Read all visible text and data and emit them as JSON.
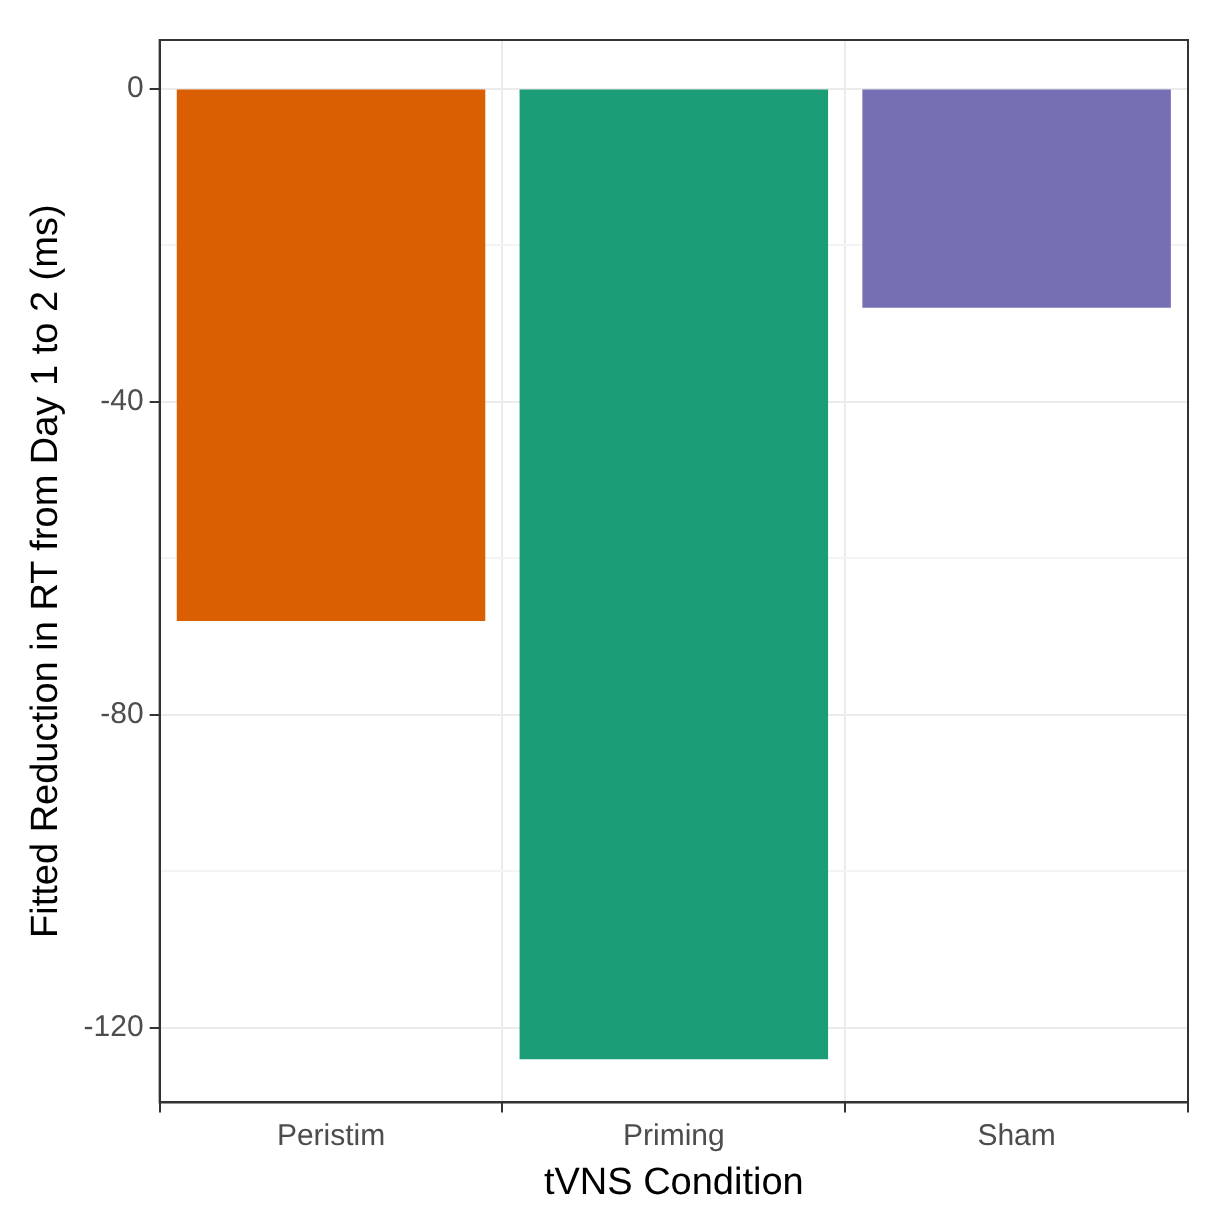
{
  "chart_data": {
    "type": "bar",
    "xlabel": "tVNS Condition",
    "ylabel": "Fitted Reduction in RT from Day 1 to 2 (ms)",
    "categories": [
      "Peristim",
      "Priming",
      "Sham"
    ],
    "values": [
      -68,
      -124,
      -28
    ],
    "colors": [
      "#d95f02",
      "#1b9e77",
      "#7570b3"
    ],
    "ylim": [
      -129.5,
      6.2
    ],
    "yticks": [
      {
        "value": -120,
        "label": "-120"
      },
      {
        "value": -100,
        "label": null
      },
      {
        "value": -80,
        "label": "-80"
      },
      {
        "value": -60,
        "label": null
      },
      {
        "value": -40,
        "label": "-40"
      },
      {
        "value": -20,
        "label": null
      },
      0
    ],
    "grid": true
  }
}
